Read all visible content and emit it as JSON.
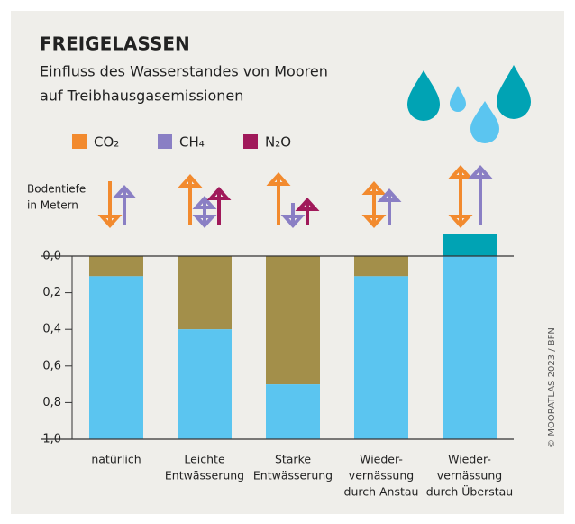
{
  "chart_data": {
    "type": "bar",
    "title": "FREIGELASSEN",
    "subtitle": [
      "Einfluss des Wasserstandes von Mooren",
      "auf Treibhausgasemissionen"
    ],
    "y_label": [
      "Bodentiefe",
      "in Metern"
    ],
    "legend": [
      {
        "label": "CO₂",
        "color": "#f28a2e"
      },
      {
        "label": "CH₄",
        "color": "#8a7fc4"
      },
      {
        "label": "N₂O",
        "color": "#a0195a"
      }
    ],
    "categories": [
      [
        "natürlich"
      ],
      [
        "Leichte",
        "Entwässerung"
      ],
      [
        "Starke",
        "Entwässerung"
      ],
      [
        "Wieder-",
        "vernässung",
        "durch Anstau"
      ],
      [
        "Wieder-",
        "vernässung",
        "durch Überstau"
      ]
    ],
    "series": [
      {
        "color": "#a38f4a",
        "values": [
          0.11,
          0.4,
          0.7,
          0.11,
          0
        ]
      },
      {
        "color": "#5bc5f0",
        "values": [
          0.89,
          0.6,
          0.3,
          0.89,
          1.0
        ]
      },
      {
        "color": "#00a3b4",
        "values": [
          0,
          0,
          0,
          0,
          0.12
        ]
      }
    ],
    "ylim": [
      1.0,
      0.0
    ],
    "yticks": [
      {
        "value": 0,
        "label": "0,0"
      },
      {
        "value": 0.2,
        "label": "0,2"
      },
      {
        "value": 0.4,
        "label": "0,4"
      },
      {
        "value": 0.6,
        "label": "0,6"
      },
      {
        "value": 0.8,
        "label": "0,8"
      },
      {
        "value": 1.0,
        "label": "1,0"
      }
    ],
    "source": "© MOORATLAS 2023 / BFN"
  }
}
